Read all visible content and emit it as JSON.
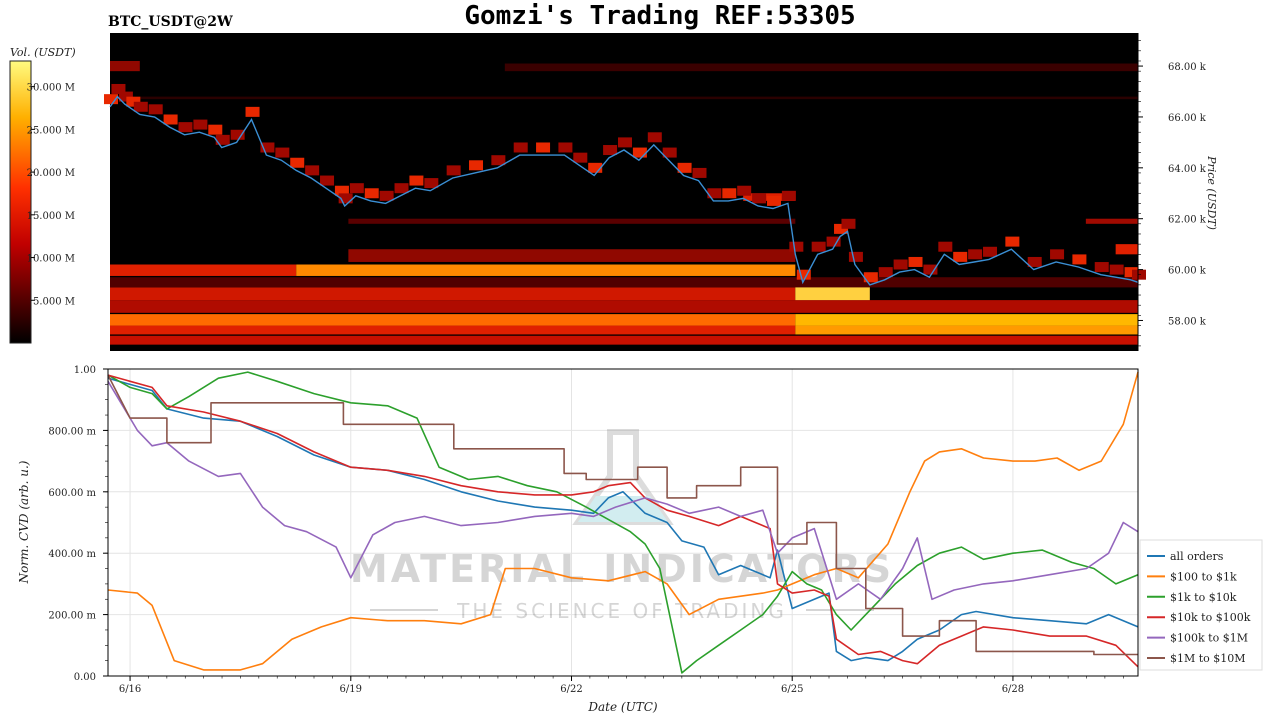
{
  "header": {
    "symbol": "BTC_USDT@2W",
    "title": "Gomzi's Trading REF:53305"
  },
  "watermark": {
    "brand": "MATERIAL INDICATORS",
    "tagline": "THE SCIENCE OF TRADING"
  },
  "colors": {
    "all_orders": "#1f77b4",
    "100_1k": "#ff7f0e",
    "1k_10k": "#2ca02c",
    "10k_100k": "#d62728",
    "100k_1m": "#9467bd",
    "1m_10m": "#8c564b",
    "price": "#3b8fd4",
    "heatmap_bg": "#000000"
  },
  "chart_data": [
    {
      "type": "heatmap",
      "ylabel": "Price (USDT)",
      "y_ticks": [
        "58.00 k",
        "60.00 k",
        "62.00 k",
        "64.00 k",
        "66.00 k",
        "68.00 k"
      ],
      "ylim": [
        56800,
        69300
      ],
      "colorbar": {
        "label": "Vol. (USDT)",
        "ticks": [
          "5.000 M",
          "10.000 M",
          "15.000 M",
          "20.000 M",
          "25.000 M",
          "30.000 M"
        ],
        "range": [
          0,
          33000000
        ],
        "colormap": "hot"
      },
      "x_range_days": [
        15.7,
        29.5
      ],
      "price_series": {
        "x": [
          15.7,
          15.8,
          15.9,
          16.0,
          16.1,
          16.3,
          16.5,
          16.7,
          16.9,
          17.1,
          17.2,
          17.4,
          17.6,
          17.8,
          18.0,
          18.2,
          18.4,
          18.6,
          18.8,
          18.85,
          19.0,
          19.2,
          19.4,
          19.6,
          19.8,
          20.0,
          20.3,
          20.6,
          20.9,
          21.2,
          21.5,
          21.8,
          22.0,
          22.2,
          22.4,
          22.6,
          22.8,
          23.0,
          23.2,
          23.4,
          23.6,
          23.8,
          24.0,
          24.2,
          24.4,
          24.6,
          24.8,
          24.9,
          25.0,
          25.2,
          25.4,
          25.5,
          25.6,
          25.7,
          25.9,
          26.1,
          26.3,
          26.5,
          26.7,
          26.9,
          27.1,
          27.3,
          27.5,
          27.8,
          28.1,
          28.4,
          28.7,
          29.0,
          29.2,
          29.4,
          29.5
        ],
        "y": [
          66400,
          66800,
          66500,
          66300,
          66100,
          66000,
          65600,
          65300,
          65400,
          65200,
          64800,
          65000,
          65900,
          64500,
          64300,
          63900,
          63600,
          63200,
          62800,
          62500,
          62900,
          62700,
          62600,
          62900,
          63200,
          63100,
          63600,
          63800,
          64000,
          64500,
          64500,
          64500,
          64100,
          63700,
          64400,
          64700,
          64300,
          64900,
          64300,
          63700,
          63500,
          62700,
          62700,
          62800,
          62500,
          62400,
          62600,
          60600,
          59500,
          60600,
          60800,
          61300,
          61500,
          60200,
          59400,
          59600,
          59900,
          60000,
          59700,
          60600,
          60200,
          60300,
          60400,
          60800,
          60000,
          60300,
          60100,
          59800,
          59700,
          59600,
          59500
        ]
      }
    },
    {
      "type": "line",
      "xlabel": "Date (UTC)",
      "ylabel": "Norm. CVD (arb. u.)",
      "x_ticks": [
        "6/16",
        "6/19",
        "6/22",
        "6/25",
        "6/28"
      ],
      "x_tick_values": [
        16,
        19,
        22,
        25,
        28
      ],
      "xlim": [
        15.7,
        29.7
      ],
      "y_ticks": [
        "0.00",
        "200.00 m",
        "400.00 m",
        "600.00 m",
        "800.00 m",
        "1.00"
      ],
      "y_tick_values": [
        0,
        0.2,
        0.4,
        0.6,
        0.8,
        1.0
      ],
      "ylim": [
        0,
        1.0
      ],
      "legend": "right",
      "series": [
        {
          "name": "all orders",
          "color_key": "all_orders",
          "x": [
            15.7,
            16.0,
            16.3,
            16.5,
            17.0,
            17.5,
            18.0,
            18.5,
            19.0,
            19.5,
            20.0,
            20.5,
            21.0,
            21.5,
            22.0,
            22.3,
            22.5,
            22.7,
            23.0,
            23.3,
            23.5,
            23.8,
            24.0,
            24.3,
            24.5,
            24.7,
            24.8,
            25.0,
            25.3,
            25.5,
            25.6,
            25.8,
            26.0,
            26.3,
            26.5,
            26.7,
            27.0,
            27.3,
            27.5,
            28.0,
            28.5,
            29.0,
            29.3,
            29.7
          ],
          "y": [
            0.97,
            0.95,
            0.93,
            0.87,
            0.84,
            0.83,
            0.78,
            0.72,
            0.68,
            0.67,
            0.64,
            0.6,
            0.57,
            0.55,
            0.54,
            0.53,
            0.58,
            0.6,
            0.53,
            0.5,
            0.44,
            0.42,
            0.33,
            0.36,
            0.34,
            0.32,
            0.41,
            0.22,
            0.25,
            0.27,
            0.08,
            0.05,
            0.06,
            0.05,
            0.08,
            0.12,
            0.15,
            0.2,
            0.21,
            0.19,
            0.18,
            0.17,
            0.2,
            0.16
          ]
        },
        {
          "name": "$100 to $1k",
          "color_key": "100_1k",
          "x": [
            15.7,
            16.1,
            16.3,
            16.6,
            17.0,
            17.5,
            17.8,
            18.2,
            18.6,
            19.0,
            19.5,
            20.0,
            20.5,
            20.9,
            21.1,
            21.5,
            22.0,
            22.5,
            23.0,
            23.3,
            23.6,
            24.0,
            24.3,
            24.6,
            24.8,
            25.0,
            25.3,
            25.6,
            25.9,
            26.3,
            26.6,
            26.8,
            27.0,
            27.3,
            27.6,
            28.0,
            28.3,
            28.6,
            28.9,
            29.2,
            29.5,
            29.7
          ],
          "y": [
            0.28,
            0.27,
            0.23,
            0.05,
            0.02,
            0.02,
            0.04,
            0.12,
            0.16,
            0.19,
            0.18,
            0.18,
            0.17,
            0.2,
            0.35,
            0.35,
            0.32,
            0.31,
            0.34,
            0.3,
            0.2,
            0.25,
            0.26,
            0.27,
            0.28,
            0.3,
            0.33,
            0.35,
            0.32,
            0.43,
            0.6,
            0.7,
            0.73,
            0.74,
            0.71,
            0.7,
            0.7,
            0.71,
            0.67,
            0.7,
            0.82,
            0.99
          ]
        },
        {
          "name": "$1k to $10k",
          "color_key": "1k_10k",
          "x": [
            15.7,
            16.0,
            16.3,
            16.5,
            16.8,
            17.2,
            17.6,
            18.0,
            18.5,
            19.0,
            19.5,
            19.9,
            20.2,
            20.6,
            21.0,
            21.4,
            21.8,
            22.2,
            22.5,
            22.8,
            23.0,
            23.2,
            23.5,
            23.7,
            24.0,
            24.3,
            24.6,
            24.8,
            25.0,
            25.2,
            25.4,
            25.6,
            25.8,
            26.0,
            26.4,
            26.7,
            27.0,
            27.3,
            27.6,
            28.0,
            28.4,
            28.8,
            29.1,
            29.4,
            29.7
          ],
          "y": [
            0.98,
            0.94,
            0.92,
            0.87,
            0.91,
            0.97,
            0.99,
            0.96,
            0.92,
            0.89,
            0.88,
            0.84,
            0.68,
            0.64,
            0.65,
            0.62,
            0.6,
            0.55,
            0.51,
            0.47,
            0.43,
            0.35,
            0.01,
            0.05,
            0.1,
            0.15,
            0.2,
            0.26,
            0.34,
            0.3,
            0.28,
            0.2,
            0.15,
            0.2,
            0.3,
            0.36,
            0.4,
            0.42,
            0.38,
            0.4,
            0.41,
            0.37,
            0.35,
            0.3,
            0.33
          ]
        },
        {
          "name": "$10k to $100k",
          "color_key": "10k_100k",
          "x": [
            15.7,
            16.0,
            16.3,
            16.5,
            17.0,
            17.5,
            18.0,
            18.5,
            19.0,
            19.5,
            20.0,
            20.5,
            21.0,
            21.5,
            22.0,
            22.3,
            22.5,
            22.8,
            23.0,
            23.3,
            23.6,
            24.0,
            24.3,
            24.5,
            24.7,
            24.8,
            25.0,
            25.3,
            25.5,
            25.6,
            25.9,
            26.2,
            26.5,
            26.7,
            27.0,
            27.3,
            27.6,
            28.0,
            28.5,
            29.0,
            29.4,
            29.7
          ],
          "y": [
            0.98,
            0.96,
            0.94,
            0.88,
            0.86,
            0.83,
            0.79,
            0.73,
            0.68,
            0.67,
            0.65,
            0.62,
            0.6,
            0.59,
            0.59,
            0.6,
            0.62,
            0.63,
            0.58,
            0.54,
            0.52,
            0.49,
            0.52,
            0.5,
            0.48,
            0.3,
            0.27,
            0.28,
            0.26,
            0.12,
            0.07,
            0.08,
            0.05,
            0.04,
            0.1,
            0.13,
            0.16,
            0.15,
            0.13,
            0.13,
            0.1,
            0.03
          ]
        },
        {
          "name": "$100k to $1M",
          "color_key": "100k_1m",
          "x": [
            15.7,
            15.9,
            16.1,
            16.3,
            16.5,
            16.8,
            17.2,
            17.5,
            17.8,
            18.1,
            18.4,
            18.8,
            19.0,
            19.3,
            19.6,
            20.0,
            20.5,
            21.0,
            21.5,
            22.0,
            22.3,
            22.6,
            23.0,
            23.3,
            23.6,
            24.0,
            24.3,
            24.6,
            24.8,
            25.0,
            25.3,
            25.6,
            25.9,
            26.2,
            26.5,
            26.7,
            26.9,
            27.2,
            27.6,
            28.0,
            28.5,
            29.0,
            29.3,
            29.5,
            29.7
          ],
          "y": [
            0.96,
            0.88,
            0.8,
            0.75,
            0.76,
            0.7,
            0.65,
            0.66,
            0.55,
            0.49,
            0.47,
            0.42,
            0.32,
            0.46,
            0.5,
            0.52,
            0.49,
            0.5,
            0.52,
            0.53,
            0.52,
            0.55,
            0.58,
            0.56,
            0.53,
            0.55,
            0.52,
            0.54,
            0.4,
            0.45,
            0.48,
            0.25,
            0.3,
            0.25,
            0.35,
            0.45,
            0.25,
            0.28,
            0.3,
            0.31,
            0.33,
            0.35,
            0.4,
            0.5,
            0.47
          ]
        },
        {
          "name": "$1M to $10M",
          "color_key": "1m_10m",
          "x": [
            15.7,
            16.0,
            16.5,
            16.5,
            17.1,
            17.1,
            18.9,
            18.9,
            20.4,
            20.4,
            21.9,
            21.9,
            22.2,
            22.2,
            22.9,
            22.9,
            23.3,
            23.3,
            23.7,
            23.7,
            24.3,
            24.3,
            24.8,
            24.8,
            25.2,
            25.2,
            25.6,
            25.6,
            26.0,
            26.0,
            26.5,
            26.5,
            27.0,
            27.0,
            27.5,
            27.5,
            28.0,
            28.0,
            29.1,
            29.1,
            29.7
          ],
          "y": [
            0.98,
            0.84,
            0.84,
            0.76,
            0.76,
            0.89,
            0.89,
            0.82,
            0.82,
            0.74,
            0.74,
            0.66,
            0.66,
            0.64,
            0.64,
            0.68,
            0.68,
            0.58,
            0.58,
            0.62,
            0.62,
            0.68,
            0.68,
            0.43,
            0.43,
            0.5,
            0.5,
            0.35,
            0.35,
            0.22,
            0.22,
            0.13,
            0.13,
            0.18,
            0.18,
            0.08,
            0.08,
            0.08,
            0.08,
            0.07,
            0.07
          ]
        }
      ]
    }
  ]
}
